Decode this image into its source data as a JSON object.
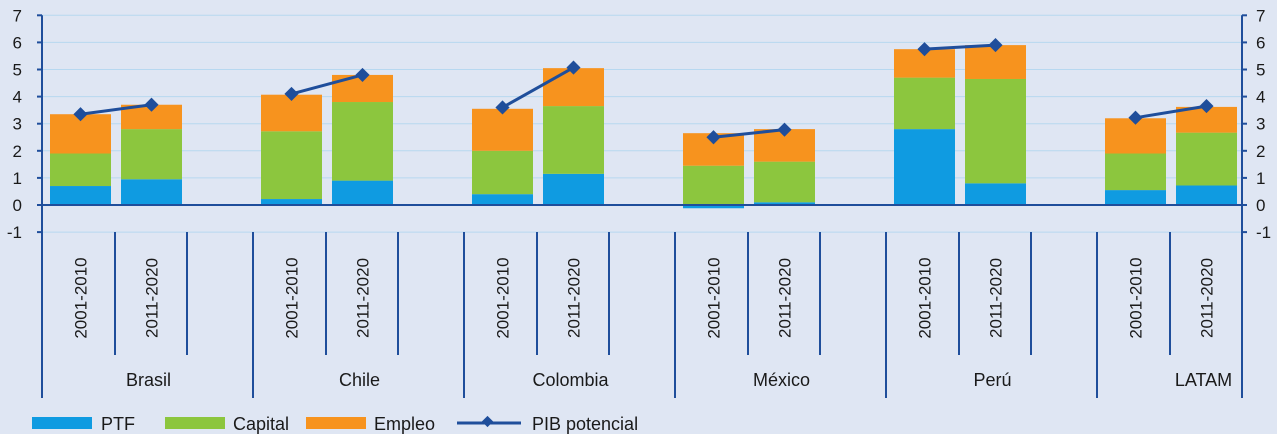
{
  "chart_data": {
    "type": "bar",
    "stacked": true,
    "title": "",
    "ylim": [
      -1,
      7
    ],
    "yticks": [
      -1,
      0,
      1,
      2,
      3,
      4,
      5,
      6,
      7
    ],
    "ytick_labels": [
      "-1",
      "0",
      "1",
      "2",
      "3",
      "4",
      "5",
      "6",
      "7"
    ],
    "grid": true,
    "legend_position": "bottom",
    "groups": [
      {
        "label": "Brasil",
        "periods": [
          "2001-2010",
          "2011-2020"
        ]
      },
      {
        "label": "Chile",
        "periods": [
          "2001-2010",
          "2011-2020"
        ]
      },
      {
        "label": "Colombia",
        "periods": [
          "2001-2010",
          "2011-2020"
        ]
      },
      {
        "label": "México",
        "periods": [
          "2001-2010",
          "2011-2020"
        ]
      },
      {
        "label": "Perú",
        "periods": [
          "2001-2010",
          "2011-2020"
        ]
      },
      {
        "label": "LATAM",
        "periods": [
          "2001-2010",
          "2011-2020"
        ]
      }
    ],
    "series": [
      {
        "name": "PTF",
        "kind": "bar",
        "color": "#0f9be1",
        "values": [
          [
            0.7,
            0.95
          ],
          [
            0.22,
            0.9
          ],
          [
            0.4,
            1.15
          ],
          [
            -0.12,
            0.1
          ],
          [
            2.8,
            0.8
          ],
          [
            0.55,
            0.72
          ]
        ]
      },
      {
        "name": "Capital",
        "kind": "bar",
        "color": "#8cc63e",
        "values": [
          [
            1.2,
            1.85
          ],
          [
            2.5,
            2.9
          ],
          [
            1.6,
            2.5
          ],
          [
            1.45,
            1.5
          ],
          [
            1.9,
            3.85
          ],
          [
            1.35,
            1.95
          ]
        ]
      },
      {
        "name": "Empleo",
        "kind": "bar",
        "color": "#f7931e",
        "values": [
          [
            1.45,
            0.9
          ],
          [
            1.35,
            1.0
          ],
          [
            1.55,
            1.4
          ],
          [
            1.2,
            1.2
          ],
          [
            1.05,
            1.25
          ],
          [
            1.3,
            0.95
          ]
        ]
      },
      {
        "name": "PIB potencial",
        "kind": "line",
        "color": "#1f4e9b",
        "values": [
          [
            3.35,
            3.7
          ],
          [
            4.1,
            4.8
          ],
          [
            3.6,
            5.07
          ],
          [
            2.5,
            2.78
          ],
          [
            5.75,
            5.9
          ],
          [
            3.22,
            3.65
          ]
        ]
      }
    ]
  },
  "legend": {
    "ptf_label": "PTF",
    "capital_label": "Capital",
    "empleo_label": "Empleo",
    "pib_label": "PIB potencial"
  }
}
